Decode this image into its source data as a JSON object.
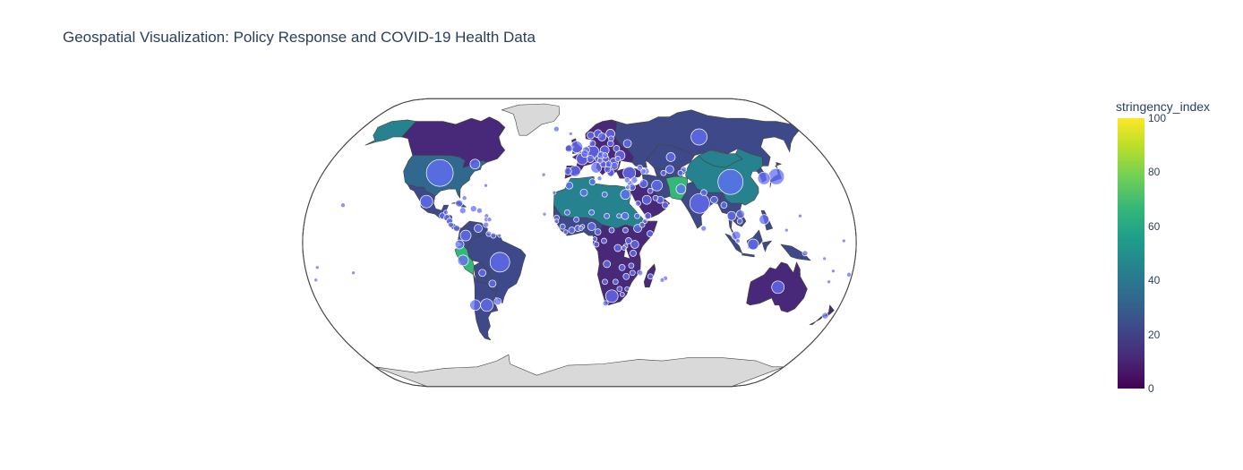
{
  "title": "Geospatial Visualization: Policy Response and COVID-19 Health Data",
  "colors": {
    "ocean": "#ffffff",
    "no_data_land": "#d9d9d9",
    "coast": "#444444",
    "bubble_fill": "#636efa",
    "bubble_stroke": "#ffffff",
    "scale": [
      "#440154",
      "#482878",
      "#3e4989",
      "#31688e",
      "#26828e",
      "#1f9e89",
      "#35b779",
      "#6ece58",
      "#b5de2b",
      "#fde725"
    ]
  },
  "colorbar": {
    "title": "stringency_index",
    "min": 0,
    "max": 100,
    "ticks": [
      "0",
      "20",
      "40",
      "60",
      "80",
      "100"
    ]
  },
  "map": {
    "projection": "natural earth",
    "choropleth_variable": "stringency_index"
  },
  "chart_data": {
    "type": "scatter-geo + choropleth",
    "regions": [
      {
        "name": "Greenland",
        "lon": -40,
        "lat": 72,
        "stringency_index": null
      },
      {
        "name": "Alaska",
        "lon": -150,
        "lat": 64,
        "stringency_index": 40
      },
      {
        "name": "Canada",
        "lon": -100,
        "lat": 60,
        "stringency_index": 12
      },
      {
        "name": "United States",
        "lon": -100,
        "lat": 40,
        "stringency_index": 38
      },
      {
        "name": "Mexico",
        "lon": -102,
        "lat": 23,
        "stringency_index": 25
      },
      {
        "name": "Brazil",
        "lon": -52,
        "lat": -10,
        "stringency_index": 20
      },
      {
        "name": "Peru",
        "lon": -75,
        "lat": -10,
        "stringency_index": 62
      },
      {
        "name": "Argentina",
        "lon": -65,
        "lat": -35,
        "stringency_index": 22
      },
      {
        "name": "Europe",
        "lon": 15,
        "lat": 50,
        "stringency_index": 15
      },
      {
        "name": "Russia",
        "lon": 95,
        "lat": 62,
        "stringency_index": 18
      },
      {
        "name": "Kazakhstan",
        "lon": 67,
        "lat": 48,
        "stringency_index": 20
      },
      {
        "name": "China",
        "lon": 104,
        "lat": 35,
        "stringency_index": 45
      },
      {
        "name": "Mongolia",
        "lon": 103,
        "lat": 46,
        "stringency_index": 45
      },
      {
        "name": "Iran",
        "lon": 54,
        "lat": 32,
        "stringency_index": 20
      },
      {
        "name": "Afghanistan / Pakistan",
        "lon": 68,
        "lat": 32,
        "stringency_index": 62
      },
      {
        "name": "India",
        "lon": 79,
        "lat": 22,
        "stringency_index": 20
      },
      {
        "name": "Saudi Arabia",
        "lon": 45,
        "lat": 24,
        "stringency_index": 12
      },
      {
        "name": "Algeria / Libya",
        "lon": 10,
        "lat": 27,
        "stringency_index": 42
      },
      {
        "name": "West Africa",
        "lon": -5,
        "lat": 12,
        "stringency_index": 18
      },
      {
        "name": "Central Africa",
        "lon": 22,
        "lat": 2,
        "stringency_index": 12
      },
      {
        "name": "East Africa",
        "lon": 38,
        "lat": 2,
        "stringency_index": 8
      },
      {
        "name": "Southern Africa",
        "lon": 25,
        "lat": -22,
        "stringency_index": 12
      },
      {
        "name": "Madagascar",
        "lon": 47,
        "lat": -19,
        "stringency_index": 8
      },
      {
        "name": "Southeast Asia",
        "lon": 105,
        "lat": 12,
        "stringency_index": 20
      },
      {
        "name": "Indonesia",
        "lon": 115,
        "lat": -2,
        "stringency_index": 22
      },
      {
        "name": "Australia",
        "lon": 134,
        "lat": -25,
        "stringency_index": 15
      },
      {
        "name": "Antarctica",
        "lon": 0,
        "lat": -80,
        "stringency_index": null
      }
    ],
    "points": [
      {
        "lon": -98,
        "lat": 39,
        "size": 30
      },
      {
        "lon": 104,
        "lat": 34,
        "size": 28
      },
      {
        "lon": 80,
        "lat": 22,
        "size": 22
      },
      {
        "lon": -52,
        "lat": -11,
        "size": 22
      },
      {
        "lon": 95,
        "lat": 60,
        "size": 18
      },
      {
        "lon": 137,
        "lat": 37,
        "size": 18
      },
      {
        "lon": 128,
        "lat": 36,
        "size": 14
      },
      {
        "lon": 10,
        "lat": 51,
        "size": 14
      },
      {
        "lon": 2,
        "lat": 47,
        "size": 13
      },
      {
        "lon": -3,
        "lat": 40,
        "size": 12
      },
      {
        "lon": 12,
        "lat": 42,
        "size": 12
      },
      {
        "lon": -2,
        "lat": 54,
        "size": 13
      },
      {
        "lon": 35,
        "lat": 39,
        "size": 14
      },
      {
        "lon": 53,
        "lat": 32,
        "size": 12
      },
      {
        "lon": 69,
        "lat": 30,
        "size": 11
      },
      {
        "lon": 22,
        "lat": -30,
        "size": 14
      },
      {
        "lon": 133,
        "lat": -25,
        "size": 14
      },
      {
        "lon": -72,
        "lat": -35,
        "size": 12
      },
      {
        "lon": -64,
        "lat": -35,
        "size": 14
      },
      {
        "lon": -76,
        "lat": -10,
        "size": 12
      },
      {
        "lon": -74,
        "lat": 4,
        "size": 12
      },
      {
        "lon": -102,
        "lat": 23,
        "size": 14
      },
      {
        "lon": -75,
        "lat": 44,
        "size": 11
      },
      {
        "lon": 31,
        "lat": 27,
        "size": 11
      },
      {
        "lon": 102,
        "lat": 4,
        "size": 10
      },
      {
        "lon": 121,
        "lat": 13,
        "size": 11
      },
      {
        "lon": 113,
        "lat": -1,
        "size": 12
      },
      {
        "lon": 100,
        "lat": 15,
        "size": 10
      },
      {
        "lon": 106,
        "lat": 16,
        "size": 9
      },
      {
        "lon": 30,
        "lat": 49,
        "size": 11
      },
      {
        "lon": 19,
        "lat": 52,
        "size": 10
      },
      {
        "lon": 25,
        "lat": 45,
        "size": 10
      },
      {
        "lon": 25,
        "lat": 62,
        "size": 10
      },
      {
        "lon": 15,
        "lat": 62,
        "size": 9
      },
      {
        "lon": 9,
        "lat": 61,
        "size": 8
      },
      {
        "lon": 45,
        "lat": 24,
        "size": 10
      },
      {
        "lon": 44,
        "lat": 33,
        "size": 9
      },
      {
        "lon": 67,
        "lat": 48,
        "size": 10
      },
      {
        "lon": 64,
        "lat": 41,
        "size": 9
      },
      {
        "lon": 8,
        "lat": 9,
        "size": 9
      },
      {
        "lon": 38,
        "lat": 8,
        "size": 9
      },
      {
        "lon": 36,
        "lat": -1,
        "size": 9
      },
      {
        "lon": 25,
        "lat": -3,
        "size": 8
      },
      {
        "lon": 18,
        "lat": -12,
        "size": 8
      },
      {
        "lon": 3,
        "lat": 28,
        "size": 8
      },
      {
        "lon": -7,
        "lat": 32,
        "size": 8
      },
      {
        "lon": 9,
        "lat": 34,
        "size": 7
      },
      {
        "lon": -1,
        "lat": 8,
        "size": 7
      },
      {
        "lon": -11,
        "lat": 9,
        "size": 6
      },
      {
        "lon": -15,
        "lat": 14,
        "size": 6
      },
      {
        "lon": 12,
        "lat": 6,
        "size": 7
      },
      {
        "lon": 18,
        "lat": 15,
        "size": 6
      },
      {
        "lon": 30,
        "lat": 15,
        "size": 8
      },
      {
        "lon": 32,
        "lat": 1,
        "size": 7
      },
      {
        "lon": 35,
        "lat": -6,
        "size": 7
      },
      {
        "lon": 28,
        "lat": -14,
        "size": 7
      },
      {
        "lon": 31,
        "lat": -19,
        "size": 7
      },
      {
        "lon": 35,
        "lat": -17,
        "size": 6
      },
      {
        "lon": 47,
        "lat": -19,
        "size": 6
      },
      {
        "lon": 57,
        "lat": -20,
        "size": 5
      },
      {
        "lon": 55,
        "lat": -21,
        "size": 5
      },
      {
        "lon": 24,
        "lat": -22,
        "size": 6
      },
      {
        "lon": 17,
        "lat": -22,
        "size": 6
      },
      {
        "lon": 29,
        "lat": -29,
        "size": 5
      },
      {
        "lon": 45,
        "lat": 15,
        "size": 7
      },
      {
        "lon": 57,
        "lat": 21,
        "size": 7
      },
      {
        "lon": 54,
        "lat": 24,
        "size": 8
      },
      {
        "lon": 51,
        "lat": 25,
        "size": 6
      },
      {
        "lon": 48,
        "lat": 29,
        "size": 6
      },
      {
        "lon": 47,
        "lat": 40,
        "size": 7
      },
      {
        "lon": 45,
        "lat": 40,
        "size": 6
      },
      {
        "lon": 43,
        "lat": 42,
        "size": 6
      },
      {
        "lon": 74,
        "lat": 41,
        "size": 6
      },
      {
        "lon": 71,
        "lat": 39,
        "size": 6
      },
      {
        "lon": 59,
        "lat": 39,
        "size": 6
      },
      {
        "lon": 84,
        "lat": 28,
        "size": 7
      },
      {
        "lon": 90,
        "lat": 24,
        "size": 8
      },
      {
        "lon": 81,
        "lat": 8,
        "size": 6
      },
      {
        "lon": 96,
        "lat": 21,
        "size": 7
      },
      {
        "lon": 105,
        "lat": 12,
        "size": 6
      },
      {
        "lon": 103,
        "lat": 1,
        "size": 5
      },
      {
        "lon": 147,
        "lat": -6,
        "size": 6
      },
      {
        "lon": 174,
        "lat": -41,
        "size": 7
      },
      {
        "lon": 178,
        "lat": -18,
        "size": 5
      },
      {
        "lon": 166,
        "lat": -22,
        "size": 4
      },
      {
        "lon": 160,
        "lat": -9,
        "size": 4
      },
      {
        "lon": 167,
        "lat": -16,
        "size": 4
      },
      {
        "lon": 145,
        "lat": 15,
        "size": 4
      },
      {
        "lon": 135,
        "lat": 7,
        "size": 4
      },
      {
        "lon": 172,
        "lat": 1,
        "size": 4
      },
      {
        "lon": -157,
        "lat": 21,
        "size": 5
      },
      {
        "lon": -149,
        "lat": -17,
        "size": 4
      },
      {
        "lon": -172,
        "lat": -14,
        "size": 4
      },
      {
        "lon": -175,
        "lat": -21,
        "size": 4
      },
      {
        "lon": -80,
        "lat": 22,
        "size": 8
      },
      {
        "lon": -77,
        "lat": 18,
        "size": 7
      },
      {
        "lon": -70,
        "lat": 19,
        "size": 7
      },
      {
        "lon": -66,
        "lat": 18,
        "size": 6
      },
      {
        "lon": -61,
        "lat": 15,
        "size": 5
      },
      {
        "lon": -61,
        "lat": 13,
        "size": 5
      },
      {
        "lon": -59,
        "lat": 13,
        "size": 5
      },
      {
        "lon": -61,
        "lat": 10,
        "size": 6
      },
      {
        "lon": -66,
        "lat": 8,
        "size": 9
      },
      {
        "lon": -59,
        "lat": 5,
        "size": 6
      },
      {
        "lon": -56,
        "lat": 4,
        "size": 6
      },
      {
        "lon": -90,
        "lat": 15,
        "size": 7
      },
      {
        "lon": -87,
        "lat": 14,
        "size": 7
      },
      {
        "lon": -85,
        "lat": 12,
        "size": 7
      },
      {
        "lon": -84,
        "lat": 10,
        "size": 6
      },
      {
        "lon": -80,
        "lat": 8,
        "size": 7
      },
      {
        "lon": -78,
        "lat": -1,
        "size": 10
      },
      {
        "lon": -64,
        "lat": -17,
        "size": 8
      },
      {
        "lon": -58,
        "lat": -23,
        "size": 8
      },
      {
        "lon": -56,
        "lat": -33,
        "size": 8
      },
      {
        "lon": -88,
        "lat": 17,
        "size": 5
      },
      {
        "lon": -77,
        "lat": 25,
        "size": 5
      },
      {
        "lon": -64,
        "lat": 32,
        "size": 4
      },
      {
        "lon": -52,
        "lat": 4,
        "size": 4
      },
      {
        "lon": -23,
        "lat": 16,
        "size": 4
      },
      {
        "lon": -17,
        "lat": 28,
        "size": 4
      },
      {
        "lon": -25,
        "lat": 38,
        "size": 4
      },
      {
        "lon": -19,
        "lat": 65,
        "size": 6
      },
      {
        "lon": -7,
        "lat": 62,
        "size": 4
      },
      {
        "lon": 14,
        "lat": 36,
        "size": 5
      },
      {
        "lon": 33,
        "lat": 35,
        "size": 6
      },
      {
        "lon": 35,
        "lat": 33,
        "size": 7
      },
      {
        "lon": 36,
        "lat": 31,
        "size": 7
      },
      {
        "lon": 38,
        "lat": 35,
        "size": 7
      },
      {
        "lon": 22,
        "lat": 39,
        "size": 8
      },
      {
        "lon": 20,
        "lat": 41,
        "size": 7
      },
      {
        "lon": 21,
        "lat": 44,
        "size": 7
      },
      {
        "lon": 17,
        "lat": 44,
        "size": 7
      },
      {
        "lon": 15,
        "lat": 46,
        "size": 6
      },
      {
        "lon": 19,
        "lat": 47,
        "size": 8
      },
      {
        "lon": 14,
        "lat": 47,
        "size": 8
      },
      {
        "lon": 8,
        "lat": 47,
        "size": 8
      },
      {
        "lon": 5,
        "lat": 52,
        "size": 8
      },
      {
        "lon": 4,
        "lat": 50,
        "size": 8
      },
      {
        "lon": 10,
        "lat": 56,
        "size": 7
      },
      {
        "lon": 18,
        "lat": 60,
        "size": 9
      },
      {
        "lon": 24,
        "lat": 56,
        "size": 7
      },
      {
        "lon": 25,
        "lat": 59,
        "size": 6
      },
      {
        "lon": 28,
        "lat": 53,
        "size": 7
      },
      {
        "lon": 28,
        "lat": 47,
        "size": 6
      },
      {
        "lon": 25,
        "lat": 43,
        "size": 8
      },
      {
        "lon": 16,
        "lat": 49,
        "size": 8
      },
      {
        "lon": 19,
        "lat": 49,
        "size": 6
      },
      {
        "lon": -8,
        "lat": 53,
        "size": 8
      },
      {
        "lon": -8,
        "lat": 40,
        "size": 8
      },
      {
        "lon": 37,
        "lat": 56,
        "size": 9
      },
      {
        "lon": 38,
        "lat": 15,
        "size": 6
      },
      {
        "lon": 43,
        "lat": 12,
        "size": 5
      },
      {
        "lon": 46,
        "lat": 5,
        "size": 7
      },
      {
        "lon": 30,
        "lat": -2,
        "size": 5
      },
      {
        "lon": 29,
        "lat": -3,
        "size": 5
      },
      {
        "lon": 30,
        "lat": 7,
        "size": 6
      },
      {
        "lon": 21,
        "lat": 7,
        "size": 6
      },
      {
        "lon": 16,
        "lat": 1,
        "size": 6
      },
      {
        "lon": 11,
        "lat": -1,
        "size": 6
      },
      {
        "lon": 10,
        "lat": 2,
        "size": 5
      },
      {
        "lon": 2,
        "lat": 9,
        "size": 5
      },
      {
        "lon": 1,
        "lat": 8,
        "size": 5
      },
      {
        "lon": -2,
        "lat": 13,
        "size": 6
      },
      {
        "lon": -5,
        "lat": 7,
        "size": 7
      },
      {
        "lon": -9,
        "lat": 6,
        "size": 5
      },
      {
        "lon": -15,
        "lat": 12,
        "size": 5
      },
      {
        "lon": -8,
        "lat": 17,
        "size": 6
      },
      {
        "lon": 8,
        "lat": 17,
        "size": 6
      },
      {
        "lon": 17,
        "lat": 27,
        "size": 6
      },
      {
        "lon": 26,
        "lat": 15,
        "size": 5
      },
      {
        "lon": 33,
        "lat": 31,
        "size": 5
      },
      {
        "lon": 39,
        "lat": 22,
        "size": 6
      },
      {
        "lon": 41,
        "lat": 10,
        "size": 6
      },
      {
        "lon": 34,
        "lat": -13,
        "size": 6
      },
      {
        "lon": 40,
        "lat": -17,
        "size": 6
      },
      {
        "lon": 27,
        "lat": -26,
        "size": 6
      },
      {
        "lon": 32,
        "lat": -26,
        "size": 5
      },
      {
        "lon": 18,
        "lat": -34,
        "size": 6
      }
    ]
  }
}
